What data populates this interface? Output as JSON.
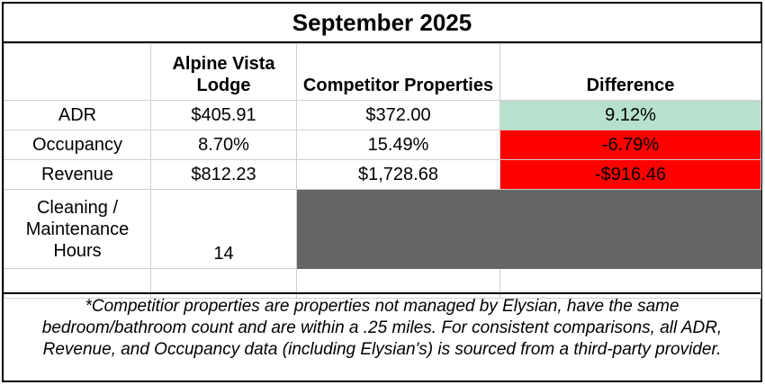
{
  "title": "September 2025",
  "headers": {
    "property": "Alpine Vista Lodge",
    "competitors": "Competitor Properties",
    "difference": "Difference"
  },
  "rows": [
    {
      "label": "ADR",
      "property": "$405.91",
      "competitors": "$372.00",
      "difference": "9.12%",
      "difference_color": "#b7e1cd"
    },
    {
      "label": "Occupancy",
      "property": "8.70%",
      "competitors": "15.49%",
      "difference": "-6.79%",
      "difference_color": "#ff0000"
    },
    {
      "label": "Revenue",
      "property": "$812.23",
      "competitors": "$1,728.68",
      "difference": "-$916.46",
      "difference_color": "#ff0000"
    }
  ],
  "cleaning": {
    "label": "Cleaning / Maintenance Hours",
    "property": "14",
    "blocked_color": "#666666"
  },
  "footnote": "*Competitior properties are properties not managed by Elysian, have the same bedroom/bathroom count and are within a .25 miles. For consistent comparisons, all ADR, Revenue, and Occupancy data (including Elysian's) is sourced from a third-party provider."
}
